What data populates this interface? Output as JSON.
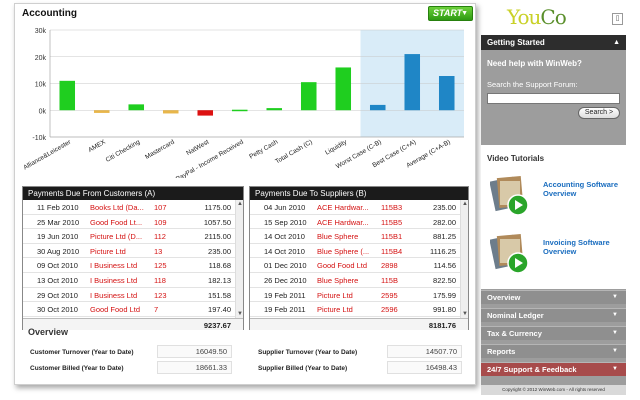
{
  "accounting": {
    "title": "Accounting",
    "start_label": "START"
  },
  "chart_data": {
    "type": "bar",
    "categories": [
      "Alliance&Leicester",
      "AMEX",
      "Citi Checking",
      "Mastercard",
      "NatWest",
      "PayPal - Income Received",
      "Petty Cash",
      "Total Cash (C)",
      "Liquidity",
      "Worst Case (C-B)",
      "Best Case (C+A)",
      "Average (C+A-B)"
    ],
    "values": [
      11000,
      -1000,
      2200,
      -1200,
      -2000,
      200,
      800,
      10500,
      16000,
      2000,
      21000,
      12800
    ],
    "colors": [
      "#1fce1f",
      "#e8b64a",
      "#1fce1f",
      "#e8b64a",
      "#dd1111",
      "#1fce1f",
      "#1fce1f",
      "#1fce1f",
      "#1fce1f",
      "#1f86c6",
      "#1f86c6",
      "#1f86c6"
    ],
    "yticks": [
      "30k",
      "20k",
      "10k",
      "0k",
      "-10k"
    ],
    "ylim": [
      -10000,
      30000
    ],
    "highlight_start_index": 9,
    "grid": true
  },
  "customers": {
    "title": "Payments Due From Customers (A)",
    "rows": [
      {
        "date": "11 Feb 2010",
        "name": "Books Ltd (Da...",
        "ref": "107",
        "amount": "1175.00"
      },
      {
        "date": "25 Mar 2010",
        "name": "Good Food Lt...",
        "ref": "109",
        "amount": "1057.50"
      },
      {
        "date": "19 Jun 2010",
        "name": "Picture Ltd (D...",
        "ref": "112",
        "amount": "2115.00"
      },
      {
        "date": "30 Aug 2010",
        "name": "Picture Ltd",
        "ref": "13",
        "amount": "235.00"
      },
      {
        "date": "09 Oct 2010",
        "name": "I Business Ltd",
        "ref": "125",
        "amount": "118.68"
      },
      {
        "date": "13 Oct 2010",
        "name": "I Business Ltd",
        "ref": "118",
        "amount": "182.13"
      },
      {
        "date": "29 Oct 2010",
        "name": "I Business Ltd",
        "ref": "123",
        "amount": "151.58"
      },
      {
        "date": "30 Oct 2010",
        "name": "Good Food Ltd",
        "ref": "7",
        "amount": "197.40"
      }
    ],
    "total": "9237.67"
  },
  "suppliers": {
    "title": "Payments Due To Suppliers (B)",
    "rows": [
      {
        "date": "04 Jun 2010",
        "name": "ACE Hardwar...",
        "ref": "115B3",
        "amount": "235.00"
      },
      {
        "date": "15 Sep 2010",
        "name": "ACE Hardwar...",
        "ref": "115B5",
        "amount": "282.00"
      },
      {
        "date": "14 Oct 2010",
        "name": "Blue Sphere",
        "ref": "115B1",
        "amount": "881.25"
      },
      {
        "date": "14 Oct 2010",
        "name": "Blue Sphere (...",
        "ref": "115B4",
        "amount": "1116.25"
      },
      {
        "date": "01 Dec 2010",
        "name": "Good Food Ltd",
        "ref": "2898",
        "amount": "114.56"
      },
      {
        "date": "26 Dec 2010",
        "name": "Blue Sphere",
        "ref": "115B",
        "amount": "822.50"
      },
      {
        "date": "19 Feb 2011",
        "name": "Picture Ltd",
        "ref": "2595",
        "amount": "175.99"
      },
      {
        "date": "19 Feb 2011",
        "name": "Picture Ltd",
        "ref": "2596",
        "amount": "991.80"
      }
    ],
    "total": "8181.76"
  },
  "overview": {
    "title": "Overview",
    "customer_turnover_label": "Customer Turnover (Year to Date)",
    "customer_turnover_value": "16049.50",
    "customer_billed_label": "Customer Billed (Year to Date)",
    "customer_billed_value": "18661.33",
    "supplier_turnover_label": "Supplier Turnover (Year to Date)",
    "supplier_turnover_value": "14507.70",
    "supplier_billed_label": "Supplier Billed (Year to Date)",
    "supplier_billed_value": "16498.43"
  },
  "sidebar": {
    "logo_part1": "You",
    "logo_part2": "Co",
    "getting_started": "Getting Started",
    "help_title": "Need help with WinWeb?",
    "search_label": "Search the Support Forum:",
    "search_button": "Search >",
    "video_title": "Video Tutorials",
    "videos": [
      {
        "label": "Accounting Software Overview"
      },
      {
        "label": "Invoicing Software Overview"
      }
    ],
    "menu": [
      "Overview",
      "Nominal Ledger",
      "Tax & Currency",
      "Reports",
      "24/7 Support & Feedback"
    ],
    "copyright": "Copyright © 2012 WinWeb.com - All rights reserved"
  }
}
